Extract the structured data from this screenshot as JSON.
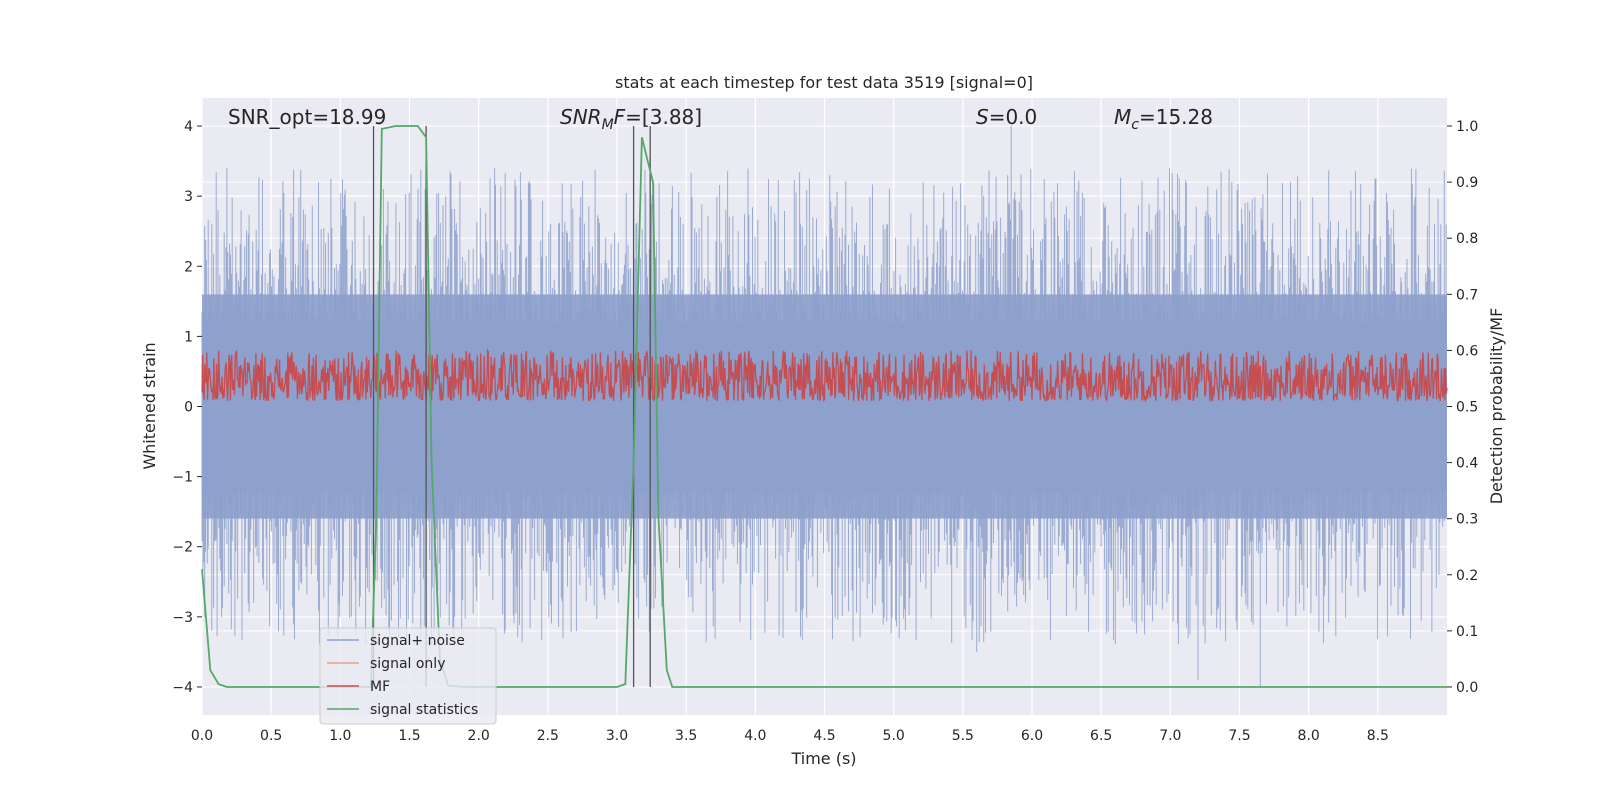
{
  "chart_data": {
    "type": "line",
    "title": "stats at each timestep for test data 3519 [signal=0]",
    "xlabel": "Time (s)",
    "ylabel": "Whitened strain",
    "y2label": "Detection probability/MF",
    "xlim": [
      0.0,
      9.0
    ],
    "ylim": [
      -4.4,
      4.4
    ],
    "y2lim": [
      -0.05,
      1.05
    ],
    "xticks": [
      "0.0",
      "0.5",
      "1.0",
      "1.5",
      "2.0",
      "2.5",
      "3.0",
      "3.5",
      "4.0",
      "4.5",
      "5.0",
      "5.5",
      "6.0",
      "6.5",
      "7.0",
      "7.5",
      "8.0",
      "8.5"
    ],
    "xtick_values": [
      0.0,
      0.5,
      1.0,
      1.5,
      2.0,
      2.5,
      3.0,
      3.5,
      4.0,
      4.5,
      5.0,
      5.5,
      6.0,
      6.5,
      7.0,
      7.5,
      8.0,
      8.5
    ],
    "yticks": [
      "−4",
      "−3",
      "−2",
      "−1",
      "0",
      "1",
      "2",
      "3",
      "4"
    ],
    "ytick_values": [
      -4,
      -3,
      -2,
      -1,
      0,
      1,
      2,
      3,
      4
    ],
    "y2ticks": [
      "0.0",
      "0.1",
      "0.2",
      "0.3",
      "0.4",
      "0.5",
      "0.6",
      "0.7",
      "0.8",
      "0.9",
      "1.0"
    ],
    "y2tick_values": [
      0.0,
      0.1,
      0.2,
      0.3,
      0.4,
      0.5,
      0.6,
      0.7,
      0.8,
      0.9,
      1.0
    ],
    "grid": true,
    "legend_position": "lower-left",
    "annotations": {
      "snr_opt": "SNR_opt=18.99",
      "snr_mf_italic": "SNR",
      "snr_mf_sub": "M",
      "snr_mf_rest_italic": "F",
      "snr_mf_value": "=[3.88]",
      "s_italic": "S",
      "s_value": "=0.0",
      "mc_italic": "M",
      "mc_sub": "c",
      "mc_value": "=15.28"
    },
    "series": [
      {
        "name": "signal+ noise",
        "color": "#8da0cb",
        "axis": "left",
        "kind": "noise",
        "envelope": [
          -1.6,
          1.6
        ],
        "peaks": [
          [
            0.18,
            3.4
          ],
          [
            5.85,
            4.0
          ],
          [
            5.6,
            -3.5
          ],
          [
            7.2,
            -3.9
          ],
          [
            7.65,
            -4.0
          ],
          [
            4.2,
            -3.3
          ]
        ]
      },
      {
        "name": "signal only",
        "color": "#e8a187",
        "axis": "left",
        "kind": "flat",
        "values": []
      },
      {
        "name": "MF",
        "color": "#c44e52",
        "axis": "right",
        "kind": "mf",
        "range": [
          0.51,
          0.6
        ]
      },
      {
        "name": "signal statistics",
        "color": "#55a868",
        "axis": "right",
        "x": [
          0.0,
          0.06,
          0.12,
          0.18,
          0.3,
          1.0,
          1.22,
          1.26,
          1.3,
          1.4,
          1.5,
          1.56,
          1.62,
          1.66,
          1.72,
          1.78,
          1.9,
          3.0,
          3.06,
          3.12,
          3.18,
          3.22,
          3.26,
          3.3,
          3.36,
          3.4,
          9.0
        ],
        "y": [
          0.21,
          0.03,
          0.005,
          0.0,
          0.0,
          0.0,
          0.0,
          0.3,
          0.995,
          1.0,
          1.0,
          1.0,
          0.98,
          0.4,
          0.05,
          0.002,
          0.0,
          0.0,
          0.005,
          0.4,
          0.98,
          0.94,
          0.9,
          0.3,
          0.03,
          0.0,
          0.0
        ]
      }
    ],
    "vlines": [
      1.24,
      1.62,
      3.12,
      3.24
    ]
  }
}
